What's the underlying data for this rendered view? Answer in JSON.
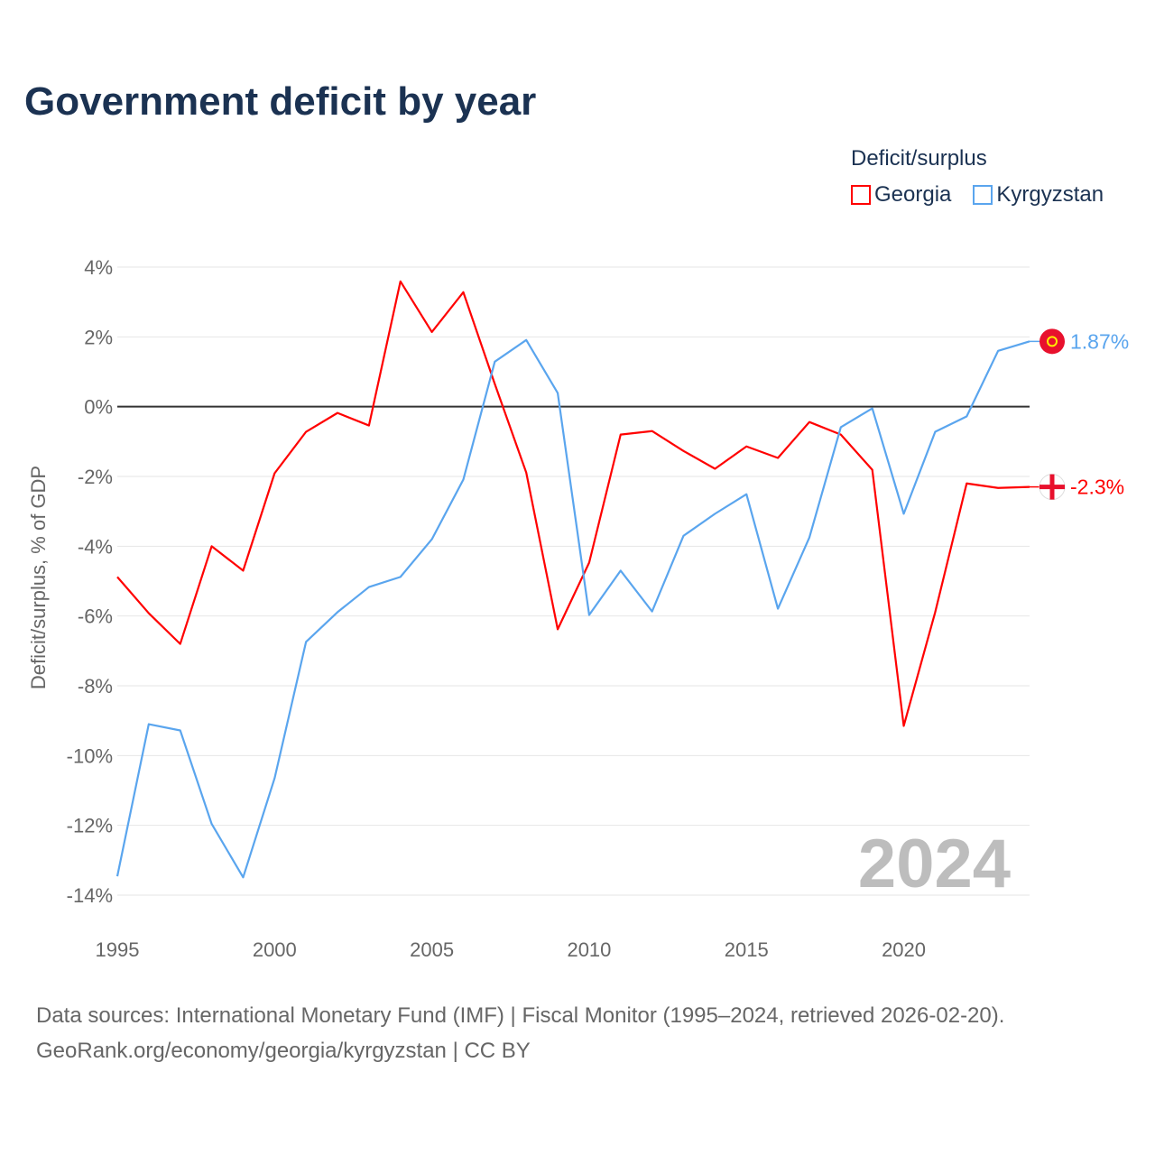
{
  "title": "Government deficit by year",
  "legend": {
    "title": "Deficit/surplus",
    "items": [
      {
        "name": "Georgia",
        "color": "#ff0000"
      },
      {
        "name": "Kyrgyzstan",
        "color": "#5aa5ee"
      }
    ]
  },
  "watermark_year": "2024",
  "source": {
    "line1": "Data sources: International Monetary Fund (IMF) | Fiscal Monitor (1995–2024, retrieved 2026-02-20).",
    "line2": "GeoRank.org/economy/georgia/kyrgyzstan | CC BY"
  },
  "chart_data": {
    "type": "line",
    "title": "Government deficit by year",
    "xlabel": "",
    "ylabel": "Deficit/surplus, % of GDP",
    "xlim": [
      1995,
      2024
    ],
    "ylim": [
      -14,
      4
    ],
    "x_ticks": [
      1995,
      2000,
      2005,
      2010,
      2015,
      2020
    ],
    "x_tick_labels": [
      "1995",
      "2000",
      "2005",
      "2010",
      "2015",
      "2020"
    ],
    "y_ticks": [
      4,
      2,
      0,
      -2,
      -4,
      -6,
      -8,
      -10,
      -12,
      -14
    ],
    "y_tick_labels": [
      "4%",
      "2%",
      "0%",
      "-2%",
      "-4%",
      "-6%",
      "-8%",
      "-10%",
      "-12%",
      "-14%"
    ],
    "grid": true,
    "legend_position": "top-right",
    "x": [
      1995,
      1996,
      1997,
      1998,
      1999,
      2000,
      2001,
      2002,
      2003,
      2004,
      2005,
      2006,
      2007,
      2008,
      2009,
      2010,
      2011,
      2012,
      2013,
      2014,
      2015,
      2016,
      2017,
      2018,
      2019,
      2020,
      2021,
      2022,
      2023,
      2024
    ],
    "series": [
      {
        "name": "Georgia",
        "color": "#ff0000",
        "end_label": "-2.3%",
        "flag": "georgia-flag",
        "values": [
          -4.88,
          -5.92,
          -6.8,
          -4.0,
          -4.7,
          -1.91,
          -0.72,
          -0.18,
          -0.54,
          3.59,
          2.14,
          3.28,
          0.65,
          -1.89,
          -6.38,
          -4.47,
          -0.8,
          -0.7,
          -1.27,
          -1.78,
          -1.14,
          -1.47,
          -0.44,
          -0.8,
          -1.81,
          -9.15,
          -5.89,
          -2.2,
          -2.33,
          -2.3
        ]
      },
      {
        "name": "Kyrgyzstan",
        "color": "#5aa5ee",
        "end_label": "1.87%",
        "flag": "kyrgyzstan-flag",
        "values": [
          -13.46,
          -9.1,
          -9.28,
          -11.96,
          -13.49,
          -10.65,
          -6.74,
          -5.89,
          -5.17,
          -4.88,
          -3.8,
          -2.09,
          1.29,
          1.91,
          0.39,
          -5.97,
          -4.7,
          -5.87,
          -3.7,
          -3.07,
          -2.51,
          -5.79,
          -3.75,
          -0.59,
          -0.05,
          -3.07,
          -0.72,
          -0.28,
          1.6,
          1.87
        ]
      }
    ]
  }
}
